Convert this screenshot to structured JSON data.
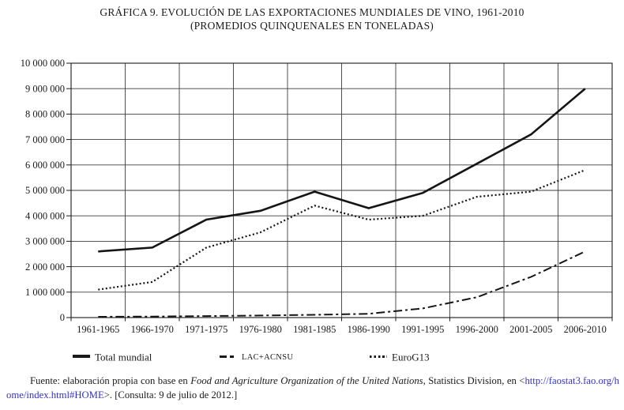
{
  "title": {
    "line1": "GRÁFICA 9. EVOLUCIÓN DE LAS EXPORTACIONES MUNDIALES DE VINO, 1961-2010",
    "line2": "(PROMEDIOS QUINQUENALES EN TONELADAS)"
  },
  "chart_data": {
    "type": "line",
    "categories": [
      "1961-1965",
      "1966-1970",
      "1971-1975",
      "1976-1980",
      "1981-1985",
      "1986-1990",
      "1991-1995",
      "1996-2000",
      "2001-2005",
      "2006-2010"
    ],
    "series": [
      {
        "name": "Total mundial",
        "style": "solid",
        "values": [
          2600000,
          2750000,
          3850000,
          4200000,
          4950000,
          4300000,
          4900000,
          6050000,
          7200000,
          9000000
        ]
      },
      {
        "name": "LAC+ACNSU",
        "style": "dashdot",
        "values": [
          30000,
          40000,
          60000,
          80000,
          110000,
          150000,
          360000,
          800000,
          1600000,
          2600000
        ]
      },
      {
        "name": "EuroG13",
        "style": "dotted",
        "values": [
          1100000,
          1400000,
          2750000,
          3350000,
          4400000,
          3850000,
          4000000,
          4750000,
          4950000,
          5800000
        ]
      }
    ],
    "xlabel": "",
    "ylabel": "",
    "ylim": [
      0,
      10000000
    ],
    "ytick_step": 1000000,
    "ytick_labels": [
      "0",
      "1 000 000",
      "2 000 000",
      "3 000 000",
      "4 000 000",
      "5 000 000",
      "6 000 000",
      "7 000 000",
      "8 000 000",
      "9 000 000",
      "10 000 000"
    ],
    "grid": true,
    "legend_position": "bottom"
  },
  "legend": {
    "items": [
      {
        "label": "Total mundial",
        "style": "solid"
      },
      {
        "label": "LAC+ACNSU",
        "style": "dashdot"
      },
      {
        "label": "EuroG13",
        "style": "dotted"
      }
    ]
  },
  "footer": {
    "prefix": "Fuente: elaboración propia con base en ",
    "source_italic": "Food and Agriculture Organization of the United Nations",
    "middle": ", Statistics Division, en <",
    "url_part1": "http://faostat3.fao.org/",
    "url_part2": "home/index.html#HOME",
    "suffix": ">. [Consulta: 9 de julio de 2012.]"
  },
  "colors": {
    "background": "#ffffff",
    "text": "#1a1a1a",
    "line": "#151515",
    "grid": "#3c3c3c",
    "link": "#3333cc"
  }
}
